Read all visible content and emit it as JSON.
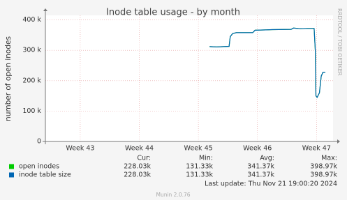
{
  "chart_data": {
    "type": "line",
    "title": "Inode table usage - by month",
    "y_label": "number of open inodes",
    "side_text": "RRDTOOL / TOBI OETIKER",
    "ylim": [
      0,
      415000
    ],
    "yticks": [
      0,
      {
        "value": 100000,
        "label": "100 k"
      },
      {
        "value": 200000,
        "label": "200 k"
      },
      {
        "value": 300000,
        "label": "300 k"
      },
      {
        "value": 400000,
        "label": "400 k"
      }
    ],
    "xlim": [
      42.41,
      47.28
    ],
    "xticks": [
      {
        "value": 43,
        "label": "Week 43"
      },
      {
        "value": 44,
        "label": "Week 44"
      },
      {
        "value": 45,
        "label": "Week 45"
      },
      {
        "value": 46,
        "label": "Week 46"
      },
      {
        "value": 47,
        "label": "Week 47"
      }
    ],
    "grid": true,
    "x": [
      45.19,
      45.31,
      45.43,
      45.52,
      45.54,
      45.58,
      45.64,
      45.78,
      45.92,
      45.96,
      46.14,
      46.25,
      46.57,
      46.61,
      46.73,
      46.85,
      46.96,
      46.98,
      46.99,
      47.01,
      47.05,
      47.08,
      47.11,
      47.15
    ],
    "series": [
      {
        "name": "open inodes",
        "color": "#00cc00",
        "values": [
          312000,
          311000,
          312000,
          313000,
          345000,
          355000,
          358000,
          358000,
          358000,
          366000,
          367000,
          368000,
          369000,
          373000,
          371000,
          372000,
          372000,
          300000,
          150000,
          145000,
          160000,
          215000,
          228000,
          228000
        ],
        "stats": [
          "228.03k",
          "131.33k",
          "341.37k",
          "398.97k"
        ]
      },
      {
        "name": "inode table size",
        "color": "#0066b3",
        "values": [
          312000,
          311000,
          312000,
          313000,
          345000,
          355000,
          358000,
          358000,
          358000,
          366000,
          367000,
          368000,
          369000,
          373000,
          371000,
          372000,
          372000,
          300000,
          150000,
          145000,
          160000,
          215000,
          228000,
          228000
        ],
        "stats": [
          "228.03k",
          "131.33k",
          "341.37k",
          "398.97k"
        ]
      }
    ],
    "stat_headers": [
      "Cur:",
      "Min:",
      "Avg:",
      "Max:"
    ],
    "last_update": "Last update: Thu Nov 21 19:00:20 2024",
    "footer": "Munin 2.0.76"
  }
}
